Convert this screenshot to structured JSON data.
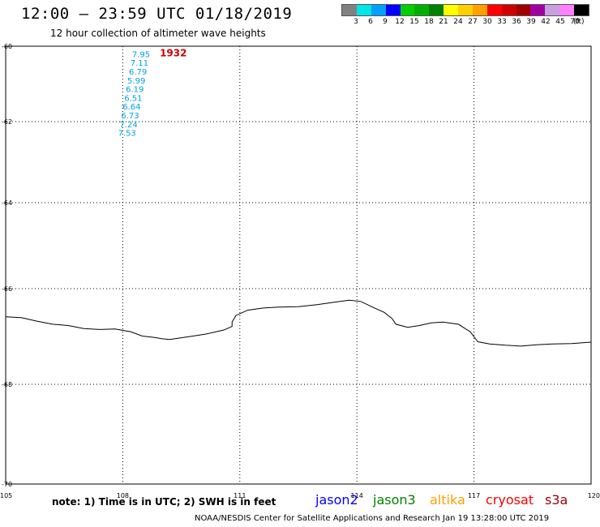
{
  "header": {
    "title": "12:00 – 23:59 UTC 01/18/2019",
    "subtitle": "12 hour collection of altimeter wave heights"
  },
  "colorbar": {
    "unit": "(ft)",
    "colors": [
      "#808080",
      "#00e5e5",
      "#00a0ff",
      "#0000ff",
      "#00d000",
      "#00b000",
      "#008000",
      "#ffff00",
      "#ffd000",
      "#ffa000",
      "#ff0000",
      "#d00000",
      "#a00000",
      "#a000a0",
      "#c8a0e0",
      "#ff80ff",
      "#000000"
    ],
    "labels": [
      "3",
      "6",
      "9",
      "12",
      "15",
      "18",
      "21",
      "24",
      "27",
      "30",
      "33",
      "36",
      "39",
      "42",
      "45",
      "70"
    ]
  },
  "map": {
    "lon_range": [
      105,
      120
    ],
    "lat_range": [
      -70,
      -60
    ],
    "lat_ticks": [
      "60",
      "62",
      "64",
      "66",
      "68",
      "70"
    ],
    "lon_ticks": [
      "105",
      "108",
      "111",
      "114",
      "117",
      "120"
    ],
    "coastline_color": "#000000",
    "coastline": [
      [
        105.0,
        -66.18
      ],
      [
        105.4,
        -66.2
      ],
      [
        105.8,
        -66.28
      ],
      [
        106.2,
        -66.35
      ],
      [
        106.6,
        -66.38
      ],
      [
        107.0,
        -66.45
      ],
      [
        107.4,
        -66.47
      ],
      [
        107.8,
        -66.46
      ],
      [
        108.2,
        -66.52
      ],
      [
        108.5,
        -66.62
      ],
      [
        108.8,
        -66.65
      ],
      [
        109.0,
        -66.68
      ],
      [
        109.2,
        -66.7
      ],
      [
        109.5,
        -66.66
      ],
      [
        109.8,
        -66.62
      ],
      [
        110.1,
        -66.58
      ],
      [
        110.4,
        -66.52
      ],
      [
        110.6,
        -66.48
      ],
      [
        110.8,
        -66.4
      ],
      [
        110.8,
        -66.3
      ],
      [
        110.9,
        -66.15
      ],
      [
        111.2,
        -66.03
      ],
      [
        111.6,
        -65.98
      ],
      [
        112.0,
        -65.96
      ],
      [
        112.5,
        -65.95
      ],
      [
        113.0,
        -65.9
      ],
      [
        113.4,
        -65.85
      ],
      [
        113.8,
        -65.8
      ],
      [
        114.1,
        -65.83
      ],
      [
        114.4,
        -65.96
      ],
      [
        114.7,
        -66.08
      ],
      [
        114.9,
        -66.22
      ],
      [
        115.0,
        -66.35
      ],
      [
        115.3,
        -66.42
      ],
      [
        115.6,
        -66.38
      ],
      [
        115.9,
        -66.32
      ],
      [
        116.2,
        -66.3
      ],
      [
        116.6,
        -66.35
      ],
      [
        116.9,
        -66.52
      ],
      [
        117.1,
        -66.75
      ],
      [
        117.4,
        -66.8
      ],
      [
        117.8,
        -66.83
      ],
      [
        118.2,
        -66.85
      ],
      [
        118.6,
        -66.82
      ],
      [
        119.0,
        -66.8
      ],
      [
        119.5,
        -66.79
      ],
      [
        120.0,
        -66.76
      ]
    ]
  },
  "passes": [
    {
      "time": "1932",
      "time_color": "#d00000",
      "values_color": "#00a0e0",
      "points": [
        {
          "lon": 108.7,
          "lat": -60.1,
          "swh": "7.95"
        },
        {
          "lon": 108.66,
          "lat": -60.3,
          "swh": "7.11"
        },
        {
          "lon": 108.62,
          "lat": -60.5,
          "swh": "6.79"
        },
        {
          "lon": 108.58,
          "lat": -60.7,
          "swh": "5.99"
        },
        {
          "lon": 108.54,
          "lat": -60.9,
          "swh": "6.19"
        },
        {
          "lon": 108.5,
          "lat": -61.1,
          "swh": "6.51"
        },
        {
          "lon": 108.46,
          "lat": -61.3,
          "swh": "6.64"
        },
        {
          "lon": 108.42,
          "lat": -61.5,
          "swh": "6.73"
        },
        {
          "lon": 108.38,
          "lat": -61.7,
          "swh": "7.24"
        },
        {
          "lon": 108.34,
          "lat": -61.9,
          "swh": "7.53"
        }
      ]
    }
  ],
  "footer": {
    "note": "note:  1) Time is in UTC;  2) SWH is in feet",
    "satellites": [
      {
        "name": "jason2",
        "color": "#0000ff"
      },
      {
        "name": "jason3",
        "color": "#008000"
      },
      {
        "name": "altika",
        "color": "#ffa000"
      },
      {
        "name": "cryosat",
        "color": "#ff0000"
      },
      {
        "name": "s3a",
        "color": "#a00000"
      }
    ],
    "credit": "NOAA/NESDIS Center for Satellite Applications and Research     Jan 19 13:28:00 UTC 2019"
  }
}
